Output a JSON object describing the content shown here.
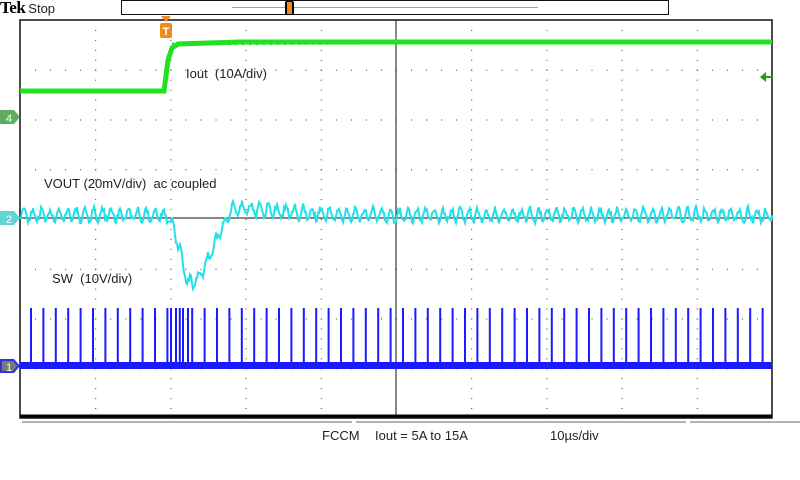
{
  "header": {
    "brand": "Tek",
    "status": "Stop"
  },
  "record_bar": {
    "window_color": "#26d4e0",
    "trigger_color": "#f08a1c"
  },
  "trigger_marker": {
    "label": "T",
    "color": "#f08a1c"
  },
  "channels": [
    {
      "id": "4",
      "color": "#5fae5f",
      "trace_color": "#22e022",
      "label": "Iout  (10A/div)"
    },
    {
      "id": "2",
      "color": "#5fd6d6",
      "trace_color": "#22e0e8",
      "label": "VOUT (20mV/div)  ac coupled"
    },
    {
      "id": "1",
      "color": "#2a3ad8",
      "trace_color": "#1a1aff",
      "label": "SW  (10V/div)"
    }
  ],
  "trigger_level_arrow": {
    "color": "#1aa01a"
  },
  "footer": {
    "mode": "FCCM",
    "condition": "Iout = 5A to 15A",
    "timebase": "10µs/div"
  },
  "grid": {
    "h_divs": 10,
    "v_divs": 8
  }
}
